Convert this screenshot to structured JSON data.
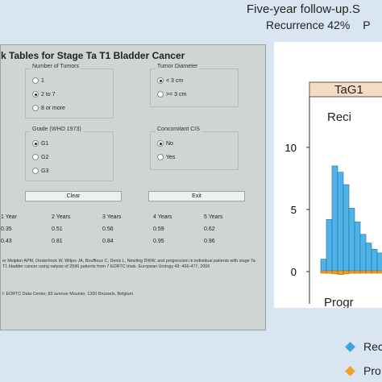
{
  "header": {
    "title": "Five-year follow-up.S",
    "subtitle_label": "Recurrence",
    "subtitle_value": "42%",
    "subtitle_extra": "P"
  },
  "panel": {
    "title": "k Tables for Stage Ta T1 Bladder Cancer",
    "tumors": {
      "label": "Number of Tumors",
      "options": [
        "1",
        "2 to 7",
        "8 or more"
      ],
      "selected": 1
    },
    "diameter": {
      "label": "Tumor Diameter",
      "options": [
        "< 3 cm",
        ">= 3 cm"
      ],
      "selected": 0
    },
    "grade": {
      "label": "Grade (WHO 1973)",
      "options": [
        "G1",
        "G2",
        "G3"
      ],
      "selected": 0
    },
    "cis": {
      "label": "Concomitant CIS",
      "options": [
        "No",
        "Yes"
      ],
      "selected": 0
    },
    "clear_label": "Clear",
    "exit_label": "Exit",
    "years": [
      "1 Year",
      "2 Years",
      "3 Years",
      "4 Years",
      "5 Years"
    ],
    "recurrence": [
      "0.35",
      "0.51",
      "0.56",
      "0.59",
      "0.62"
    ],
    "progression": [
      "0.43",
      "0.81",
      "0.84",
      "0.95",
      "0.96"
    ],
    "reference": "er Meijden APM, Oosterlinck W, Witjes JA, Bouffioux C, Denis L, Newling DWW, and progression in individual patients with stage Ta T1 bladder cancer using nalysis of 2596 patients from 7 EORTC trials. European Urology 49: 466-477, 2006",
    "contact": "t: EORTC Data Center, 83 avenue Mounier, 1200 Brussels, Belgium."
  },
  "chart_data": {
    "type": "bar",
    "strip_label": "TaG1",
    "top_label": "Reci",
    "bottom_label": "Progr",
    "y_ticks": [
      "10",
      "5",
      "0"
    ],
    "ylim": [
      0,
      12
    ],
    "series": [
      {
        "name": "Rec",
        "color": "#4fb3e8",
        "values": [
          1.0,
          4.2,
          8.5,
          8.0,
          7.0,
          5.1,
          4.0,
          3.0,
          2.3,
          1.8,
          1.5,
          1.3,
          1.1,
          1.0,
          0.9,
          0.8
        ]
      },
      {
        "name": "Pro",
        "color": "#f2a024",
        "values": [
          0.1,
          0.2,
          0.25,
          0.3,
          0.25,
          0.2,
          0.2,
          0.15,
          0.15,
          0.1,
          0.1,
          0.1,
          0.1,
          0.1,
          0.1,
          0.1
        ]
      }
    ]
  },
  "legend": {
    "items": [
      "Rec",
      "Pro"
    ],
    "colors": [
      "#3aa6e0",
      "#f2a024"
    ]
  }
}
